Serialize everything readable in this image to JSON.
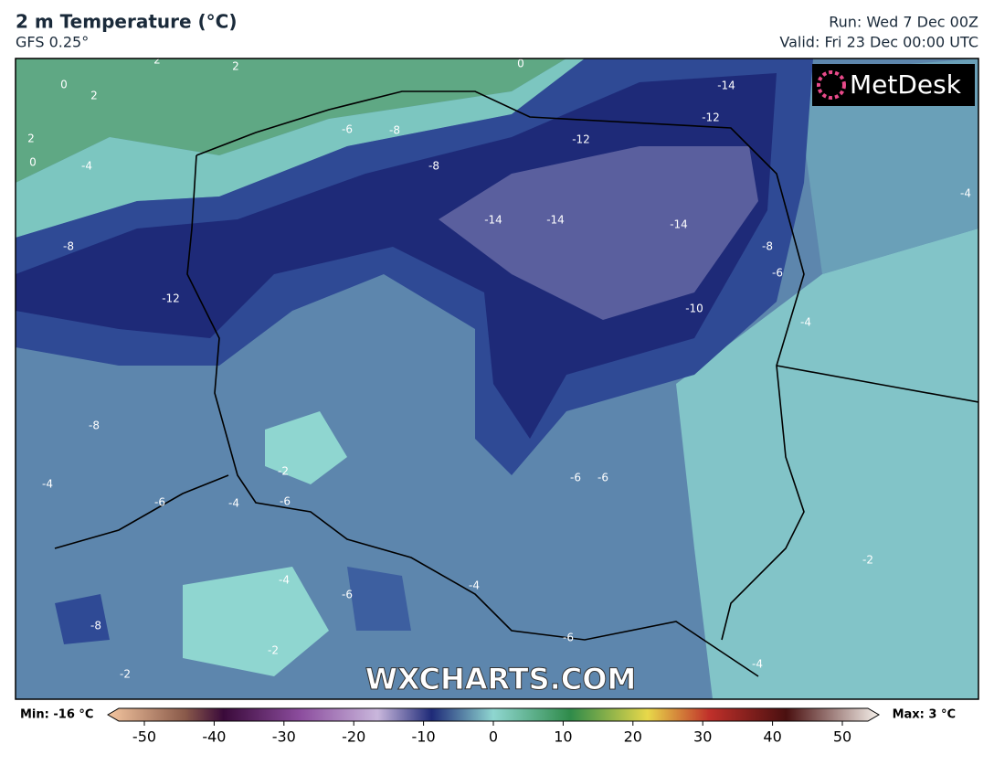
{
  "header": {
    "title": "2 m Temperature (°C)",
    "model": "GFS 0.25°",
    "run": "Run: Wed 7 Dec 00Z",
    "valid": "Valid: Fri 23 Dec 00:00 UTC"
  },
  "logo": "MetDesk",
  "watermark": "WXCHARTS.COM",
  "contour_labels": [
    "2",
    "2",
    "0",
    "2",
    "2",
    "0",
    "-4",
    "0",
    "-14",
    "-12",
    "-6",
    "-8",
    "-12",
    "-8",
    "-14",
    "-14",
    "-14",
    "-8",
    "-8",
    "-6",
    "-12",
    "-10",
    "-4",
    "-4",
    "-8",
    "-2",
    "-4",
    "-6",
    "-6",
    "-6",
    "-4",
    "-6",
    "-2",
    "-4",
    "-4",
    "-6",
    "-8",
    "-6",
    "-2",
    "-4",
    "-2"
  ],
  "colorbar": {
    "min_label": "Min: -16 °C",
    "max_label": "Max: 3 °C",
    "range": [
      -50,
      50
    ],
    "ticks": [
      -50,
      -40,
      -30,
      -20,
      -10,
      0,
      10,
      20,
      30,
      40,
      50
    ]
  }
}
